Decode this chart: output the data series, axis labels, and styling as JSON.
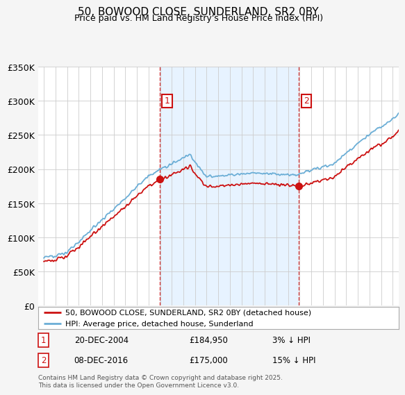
{
  "title": "50, BOWOOD CLOSE, SUNDERLAND, SR2 0BY",
  "subtitle": "Price paid vs. HM Land Registry's House Price Index (HPI)",
  "bg_color": "#f5f5f5",
  "plot_bg": "#ffffff",
  "shaded_bg": "#ddeeff",
  "ylim": [
    0,
    350000
  ],
  "yticks": [
    0,
    50000,
    100000,
    150000,
    200000,
    250000,
    300000,
    350000
  ],
  "ytick_labels": [
    "£0",
    "£50K",
    "£100K",
    "£150K",
    "£200K",
    "£250K",
    "£300K",
    "£350K"
  ],
  "sale1_date": 2004.96,
  "sale1_price": 184950,
  "sale1_label": "1",
  "sale2_date": 2016.94,
  "sale2_price": 175000,
  "sale2_label": "2",
  "hpi_color": "#6baed6",
  "price_color": "#cc1111",
  "label_box_color": "#cc1111",
  "legend_line1": "50, BOWOOD CLOSE, SUNDERLAND, SR2 0BY (detached house)",
  "legend_line2": "HPI: Average price, detached house, Sunderland",
  "note1_label": "1",
  "note1_date": "20-DEC-2004",
  "note1_price": "£184,950",
  "note1_pct": "3% ↓ HPI",
  "note2_label": "2",
  "note2_date": "08-DEC-2016",
  "note2_price": "£175,000",
  "note2_pct": "15% ↓ HPI",
  "footer": "Contains HM Land Registry data © Crown copyright and database right 2025.\nThis data is licensed under the Open Government Licence v3.0.",
  "xmin": 1994.5,
  "xmax": 2025.5
}
